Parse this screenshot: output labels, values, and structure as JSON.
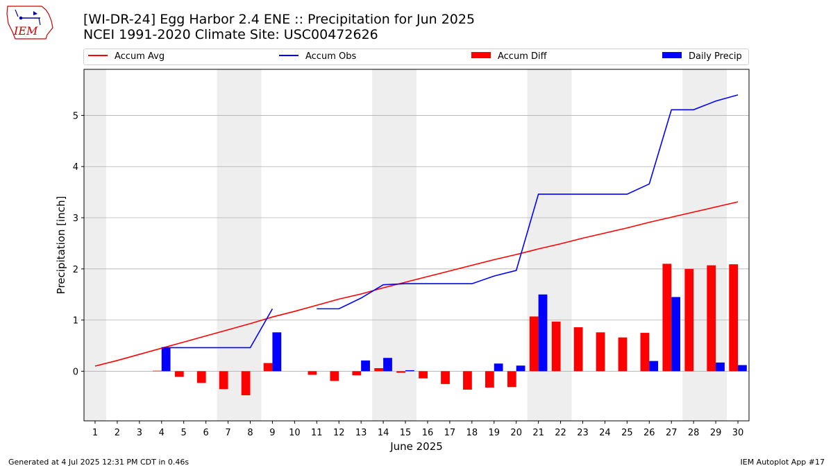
{
  "header": {
    "title_line1": "[WI-DR-24] Egg Harbor 2.4 ENE :: Precipitation for Jun 2025",
    "title_line2": "NCEI 1991-2020 Climate Site: USC00472626",
    "logo_text": "IEM"
  },
  "legend": {
    "items": [
      {
        "label": "Accum Avg",
        "color": "#ff0000",
        "kind": "line"
      },
      {
        "label": "Accum Obs",
        "color": "#0000ff",
        "kind": "line"
      },
      {
        "label": "Accum Diff",
        "color": "#ff0000",
        "kind": "bar"
      },
      {
        "label": "Daily Precip",
        "color": "#0000ff",
        "kind": "bar"
      }
    ]
  },
  "footer": {
    "generated": "Generated at 4 Jul 2025 12:31 PM CDT in 0.46s",
    "app": "IEM Autoplot App #17"
  },
  "chart_data": {
    "type": "bar",
    "xlabel": "June 2025",
    "ylabel": "Precipitation [inch]",
    "xlim": [
      0.5,
      30.5
    ],
    "ylim": [
      -0.97,
      5.9
    ],
    "yticks": [
      0,
      1,
      2,
      3,
      4,
      5
    ],
    "xticks": [
      1,
      2,
      3,
      4,
      5,
      6,
      7,
      8,
      9,
      10,
      11,
      12,
      13,
      14,
      15,
      16,
      17,
      18,
      19,
      20,
      21,
      22,
      23,
      24,
      25,
      26,
      27,
      28,
      29,
      30
    ],
    "grid": "horizontal",
    "weekend_shading": [
      [
        0.5,
        1.5
      ],
      [
        6.5,
        8.5
      ],
      [
        13.5,
        15.5
      ],
      [
        20.5,
        22.5
      ],
      [
        27.5,
        29.5
      ]
    ],
    "days": [
      1,
      2,
      3,
      4,
      5,
      6,
      7,
      8,
      9,
      10,
      11,
      12,
      13,
      14,
      15,
      16,
      17,
      18,
      19,
      20,
      21,
      22,
      23,
      24,
      25,
      26,
      27,
      28,
      29,
      30
    ],
    "series": [
      {
        "name": "Accum Avg",
        "kind": "line",
        "color": "#ff0000",
        "values": [
          0.1,
          0.21,
          0.33,
          0.45,
          0.57,
          0.69,
          0.81,
          0.93,
          1.06,
          1.17,
          1.29,
          1.41,
          1.51,
          1.63,
          1.74,
          1.85,
          1.96,
          2.07,
          2.18,
          2.28,
          2.39,
          2.49,
          2.6,
          2.7,
          2.8,
          2.91,
          3.01,
          3.11,
          3.21,
          3.31
        ]
      },
      {
        "name": "Accum Obs",
        "kind": "line",
        "color": "#0000ff",
        "values": [
          null,
          null,
          null,
          0.46,
          0.46,
          0.46,
          0.46,
          0.46,
          1.22,
          null,
          1.22,
          1.22,
          1.43,
          1.69,
          1.71,
          1.71,
          1.71,
          1.71,
          1.86,
          1.97,
          3.46,
          3.46,
          3.46,
          3.46,
          3.46,
          3.66,
          5.11,
          5.11,
          5.28,
          5.4
        ]
      },
      {
        "name": "Accum Diff",
        "kind": "bar",
        "color": "#ff0000",
        "values": [
          null,
          null,
          null,
          0.01,
          -0.11,
          -0.23,
          -0.35,
          -0.47,
          0.16,
          null,
          -0.07,
          -0.19,
          -0.08,
          0.06,
          -0.03,
          -0.14,
          -0.25,
          -0.36,
          -0.32,
          -0.31,
          1.07,
          0.97,
          0.86,
          0.76,
          0.66,
          0.75,
          2.1,
          2.0,
          2.07,
          2.09
        ]
      },
      {
        "name": "Daily Precip",
        "kind": "bar",
        "color": "#0000ff",
        "values": [
          null,
          null,
          null,
          0.46,
          0,
          0,
          0,
          0,
          0.76,
          null,
          0,
          0,
          0.21,
          0.26,
          0.02,
          0,
          0,
          0,
          0.15,
          0.11,
          1.5,
          0,
          0,
          0,
          0,
          0.2,
          1.45,
          0,
          0.17,
          0.12
        ]
      }
    ]
  }
}
